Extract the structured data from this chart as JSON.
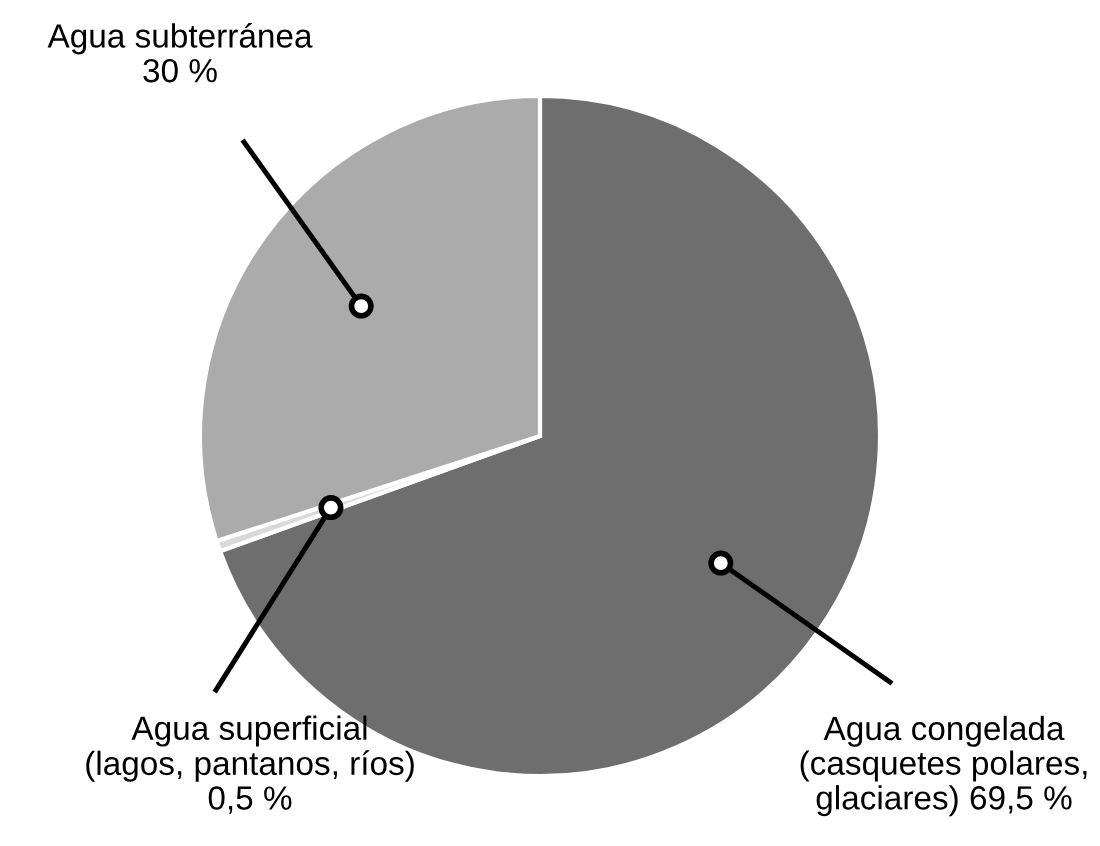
{
  "chart_data": {
    "type": "pie",
    "categories": [
      "Agua congelada\n(casquetes polares,\nglaciares)",
      "Agua superficial\n(lagos, pantanos, ríos)",
      "Agua subterránea"
    ],
    "values": [
      69.5,
      0.5,
      30
    ],
    "value_labels": [
      "69,5 %",
      "0,5 %",
      "30 %"
    ],
    "colors": [
      "#6e6e6e",
      "#d9d9d9",
      "#ababab"
    ]
  }
}
